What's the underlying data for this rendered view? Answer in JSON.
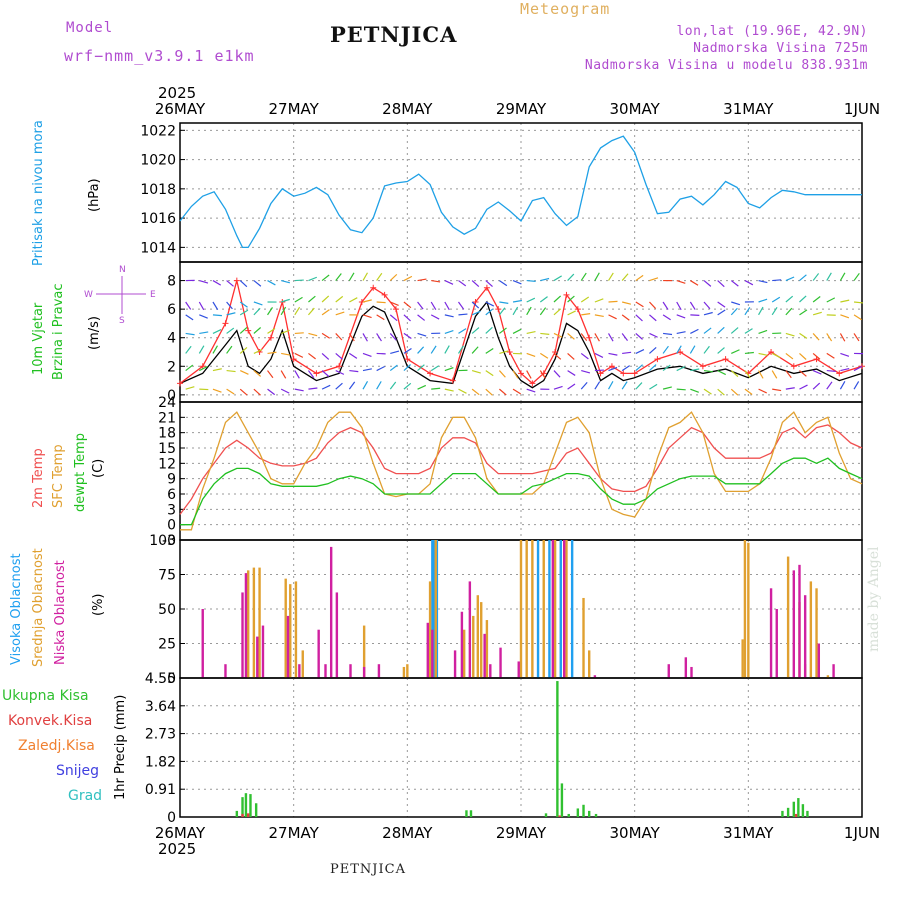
{
  "header": {
    "model_label": "Model",
    "model_name": "wrf−nmm_v3.9.1 e1km",
    "station": "PETNJICA",
    "meteogram": "Meteogram",
    "lonlat": "lon,lat (19.96E, 42.9N)",
    "elevation": "Nadmorska Visina 725m",
    "model_elevation": "Nadmorska Visina u modelu 838.931m"
  },
  "footer": {
    "station": "PETNJICA",
    "credit": "made by Angel"
  },
  "time_axis": {
    "year": "2025",
    "ticks": [
      "26MAY",
      "27MAY",
      "28MAY",
      "29MAY",
      "30MAY",
      "31MAY",
      "1JUN"
    ]
  },
  "panels": {
    "pressure": {
      "label": "Pritisak na nivou mora",
      "unit": "(hPa)",
      "color": "#1ea0e6"
    },
    "wind": {
      "label1": "10m Vjetar",
      "label2": "Brzina i Pravac",
      "unit": "(m/s)",
      "compass": [
        "N",
        "W",
        "E",
        "S"
      ]
    },
    "temp": {
      "label1": "2m Temp",
      "label2": "SFC Temp",
      "label3": "dewpt Temp",
      "unit": "(C)"
    },
    "cloud": {
      "label1": "Visoka Oblacnost",
      "label2": "Srednja Oblacnost",
      "label3": "Niska Oblacnost",
      "unit": "(%)"
    },
    "precip": {
      "unit_label": "1hr Precip (mm)",
      "legend": [
        "Ukupna Kisa",
        "Konvek.Kisa",
        "Zaledj.Kisa",
        "Snijeg",
        "Grad"
      ]
    }
  },
  "chart_data": [
    {
      "type": "line",
      "title": "",
      "ylabel": "(hPa)",
      "ylim": [
        1013,
        1022.5
      ],
      "yticks": [
        1014,
        1016,
        1018,
        1020,
        1022
      ],
      "x_days": [
        0,
        0.1,
        0.2,
        0.3,
        0.4,
        0.5,
        0.55,
        0.6,
        0.7,
        0.8,
        0.9,
        1.0,
        1.1,
        1.2,
        1.3,
        1.4,
        1.5,
        1.6,
        1.7,
        1.8,
        1.9,
        2.0,
        2.1,
        2.2,
        2.3,
        2.4,
        2.5,
        2.6,
        2.7,
        2.8,
        2.9,
        3.0,
        3.1,
        3.2,
        3.3,
        3.4,
        3.5,
        3.6,
        3.7,
        3.8,
        3.9,
        4.0,
        4.1,
        4.2,
        4.3,
        4.4,
        4.5,
        4.6,
        4.7,
        4.8,
        4.9,
        5.0,
        5.1,
        5.2,
        5.3,
        5.4,
        5.5,
        5.6,
        5.7,
        5.8,
        5.9,
        6.0
      ],
      "series": [
        {
          "name": "",
          "color": "#1ea0e6",
          "values": [
            1015.8,
            1016.8,
            1017.5,
            1017.8,
            1016.6,
            1014.8,
            1014.0,
            1014.0,
            1015.3,
            1017.0,
            1018.0,
            1017.5,
            1017.7,
            1018.1,
            1017.6,
            1016.2,
            1015.2,
            1015.0,
            1016.0,
            1018.2,
            1018.4,
            1018.5,
            1019.0,
            1018.3,
            1016.4,
            1015.4,
            1014.9,
            1015.3,
            1016.6,
            1017.1,
            1016.5,
            1015.8,
            1017.2,
            1017.4,
            1016.3,
            1015.5,
            1016.1,
            1019.5,
            1020.8,
            1021.3,
            1021.6,
            1020.5,
            1018.3,
            1016.3,
            1016.4,
            1017.3,
            1017.5,
            1016.9,
            1017.6,
            1018.5,
            1018.1,
            1017.0,
            1016.7,
            1017.4,
            1017.9,
            1017.8,
            1017.6,
            1017.6,
            1017.6,
            1017.6,
            1017.6,
            1017.6
          ]
        }
      ]
    },
    {
      "type": "line",
      "title": "",
      "ylabel": "(m/s)",
      "ylim": [
        -0.5,
        9.3
      ],
      "yticks": [
        0,
        2,
        4,
        6,
        8
      ],
      "x_days": [
        0,
        0.2,
        0.4,
        0.5,
        0.6,
        0.7,
        0.8,
        0.9,
        1.0,
        1.2,
        1.4,
        1.6,
        1.7,
        1.8,
        1.9,
        2.0,
        2.2,
        2.4,
        2.6,
        2.7,
        2.8,
        2.9,
        3.0,
        3.1,
        3.2,
        3.3,
        3.4,
        3.5,
        3.6,
        3.7,
        3.8,
        3.9,
        4.0,
        4.2,
        4.4,
        4.6,
        4.8,
        5.0,
        5.2,
        5.4,
        5.6,
        5.8,
        6.0
      ],
      "series": [
        {
          "name": "",
          "color": "#000000",
          "values": [
            0.8,
            1.5,
            3.5,
            4.5,
            2.0,
            1.5,
            2.5,
            4.5,
            2.0,
            1.0,
            1.5,
            5.5,
            6.2,
            5.8,
            4.0,
            2.0,
            1.0,
            0.8,
            5.5,
            6.5,
            4.0,
            2.0,
            1.0,
            0.5,
            1.0,
            2.5,
            5.0,
            4.5,
            3.0,
            1.0,
            1.5,
            1.0,
            1.2,
            1.8,
            2.0,
            1.5,
            1.8,
            1.2,
            2.0,
            1.5,
            1.8,
            1.0,
            1.5
          ]
        },
        {
          "name": "",
          "color": "#ff3030",
          "values": [
            0.8,
            2.0,
            5.0,
            8.0,
            4.5,
            3.0,
            4.0,
            6.5,
            2.5,
            1.5,
            2.0,
            6.5,
            7.5,
            7.0,
            6.0,
            2.5,
            1.5,
            1.0,
            6.5,
            7.5,
            6.0,
            3.0,
            1.5,
            0.8,
            1.5,
            3.0,
            7.0,
            6.0,
            4.0,
            1.5,
            2.0,
            1.5,
            1.5,
            2.5,
            3.0,
            2.0,
            2.5,
            1.5,
            3.0,
            2.0,
            2.5,
            1.5,
            2.0
          ]
        }
      ]
    },
    {
      "type": "line",
      "title": "",
      "ylabel": "(C)",
      "ylim": [
        -3,
        24
      ],
      "yticks": [
        -3,
        0,
        3,
        6,
        9,
        12,
        15,
        18,
        21,
        24
      ],
      "x_days": [
        0,
        0.1,
        0.2,
        0.3,
        0.4,
        0.5,
        0.6,
        0.7,
        0.8,
        0.9,
        1.0,
        1.1,
        1.2,
        1.3,
        1.4,
        1.5,
        1.6,
        1.7,
        1.8,
        1.9,
        2.0,
        2.1,
        2.2,
        2.3,
        2.4,
        2.5,
        2.6,
        2.7,
        2.8,
        2.9,
        3.0,
        3.1,
        3.2,
        3.3,
        3.4,
        3.5,
        3.6,
        3.7,
        3.8,
        3.9,
        4.0,
        4.1,
        4.2,
        4.3,
        4.4,
        4.5,
        4.6,
        4.7,
        4.8,
        4.9,
        5.0,
        5.1,
        5.2,
        5.3,
        5.4,
        5.5,
        5.6,
        5.7,
        5.8,
        5.9,
        6.0
      ],
      "series": [
        {
          "name": "2m Temp",
          "color": "#f05050",
          "values": [
            2,
            5,
            9,
            12,
            15,
            16.5,
            15,
            13,
            12,
            11.5,
            11.5,
            12,
            13,
            16,
            18,
            19,
            18,
            15,
            11,
            10,
            10,
            10,
            11,
            15,
            17,
            17,
            16,
            12,
            10,
            10,
            10,
            10,
            10.5,
            11,
            14,
            15,
            12,
            9,
            7,
            6.5,
            6.5,
            7.5,
            11,
            15,
            17,
            19,
            18,
            15,
            13,
            13,
            13,
            13,
            14,
            18,
            19,
            17,
            19,
            19.5,
            18,
            16,
            15
          ]
        },
        {
          "name": "SFC Temp",
          "color": "#e0a030",
          "values": [
            -1,
            -1,
            7,
            13,
            20,
            22,
            18,
            14,
            9,
            8,
            8,
            12,
            15,
            20,
            22,
            22,
            19,
            12,
            6,
            5.5,
            6,
            6,
            8,
            17,
            21,
            21,
            17,
            9,
            6,
            6,
            6,
            6,
            8,
            14,
            20,
            21,
            18,
            9,
            3,
            2,
            1.5,
            5,
            13,
            19,
            20,
            22,
            18,
            10,
            6.5,
            6.5,
            6.5,
            8,
            13,
            20,
            22,
            18,
            20,
            21,
            14,
            9,
            8
          ]
        },
        {
          "name": "dewpt Temp",
          "color": "#20c020",
          "values": [
            0,
            0,
            5,
            8,
            10,
            11,
            11,
            10,
            8,
            7.5,
            7.5,
            7.5,
            7.5,
            8,
            9,
            9.5,
            9,
            8,
            6,
            6,
            6,
            6,
            6,
            8,
            10,
            10,
            10,
            8,
            6,
            6,
            6,
            7.5,
            8,
            9,
            10,
            10,
            9.5,
            7,
            5,
            4,
            4,
            5,
            7,
            8,
            9,
            9.5,
            9.5,
            9.5,
            8,
            8,
            8,
            8,
            10,
            12,
            13,
            13,
            12,
            13,
            11,
            10,
            9
          ]
        }
      ]
    },
    {
      "type": "bar",
      "title": "",
      "ylabel": "(%)",
      "ylim": [
        0,
        100
      ],
      "yticks": [
        0,
        25,
        50,
        75,
        100
      ],
      "series": [
        {
          "name": "Visoka Oblacnost",
          "color": "#20a0f0",
          "points": [
            [
              2.22,
              100
            ],
            [
              2.24,
              100
            ],
            [
              2.26,
              100
            ],
            [
              3.15,
              100
            ],
            [
              3.25,
              100
            ],
            [
              3.35,
              100
            ],
            [
              3.45,
              100
            ]
          ]
        },
        {
          "name": "Srednja Oblacnost",
          "color": "#e0a030",
          "points": [
            [
              0.6,
              78
            ],
            [
              0.65,
              80
            ],
            [
              0.7,
              80
            ],
            [
              0.93,
              72
            ],
            [
              0.97,
              68
            ],
            [
              1.02,
              70
            ],
            [
              1.08,
              20
            ],
            [
              1.62,
              38
            ],
            [
              1.97,
              8
            ],
            [
              2.0,
              10
            ],
            [
              2.2,
              70
            ],
            [
              2.25,
              100
            ],
            [
              2.5,
              35
            ],
            [
              2.58,
              45
            ],
            [
              2.62,
              60
            ],
            [
              2.65,
              55
            ],
            [
              2.7,
              42
            ],
            [
              3.0,
              100
            ],
            [
              3.05,
              100
            ],
            [
              3.1,
              100
            ],
            [
              3.2,
              100
            ],
            [
              3.3,
              100
            ],
            [
              3.4,
              100
            ],
            [
              3.55,
              58
            ],
            [
              3.6,
              20
            ],
            [
              4.95,
              28
            ],
            [
              4.97,
              100
            ],
            [
              5.0,
              98
            ],
            [
              5.35,
              88
            ],
            [
              5.45,
              55
            ],
            [
              5.5,
              10
            ],
            [
              5.55,
              70
            ],
            [
              5.6,
              65
            ],
            [
              5.7,
              2
            ]
          ]
        },
        {
          "name": "Niska Oblacnost",
          "color": "#d020a0",
          "points": [
            [
              0.2,
              50
            ],
            [
              0.4,
              10
            ],
            [
              0.55,
              62
            ],
            [
              0.58,
              76
            ],
            [
              0.68,
              30
            ],
            [
              0.73,
              38
            ],
            [
              0.95,
              45
            ],
            [
              1.05,
              10
            ],
            [
              1.22,
              35
            ],
            [
              1.28,
              10
            ],
            [
              1.33,
              95
            ],
            [
              1.38,
              62
            ],
            [
              1.5,
              10
            ],
            [
              1.62,
              8
            ],
            [
              1.75,
              10
            ],
            [
              2.18,
              40
            ],
            [
              2.22,
              35
            ],
            [
              2.42,
              20
            ],
            [
              2.48,
              48
            ],
            [
              2.55,
              70
            ],
            [
              2.68,
              32
            ],
            [
              2.73,
              10
            ],
            [
              2.82,
              22
            ],
            [
              2.98,
              12
            ],
            [
              3.28,
              100
            ],
            [
              3.38,
              100
            ],
            [
              3.65,
              2
            ],
            [
              4.3,
              10
            ],
            [
              4.45,
              15
            ],
            [
              4.5,
              8
            ],
            [
              5.2,
              65
            ],
            [
              5.25,
              50
            ],
            [
              5.4,
              78
            ],
            [
              5.45,
              82
            ],
            [
              5.5,
              60
            ],
            [
              5.62,
              25
            ],
            [
              5.75,
              10
            ]
          ]
        }
      ]
    },
    {
      "type": "bar",
      "title": "",
      "ylabel": "1hr Precip (mm)",
      "ylim": [
        0,
        4.55
      ],
      "yticks": [
        0,
        0.91,
        1.82,
        2.73,
        3.64,
        4.55
      ],
      "series": [
        {
          "name": "Ukupna Kisa",
          "color": "#30c030",
          "points": [
            [
              0.5,
              0.2
            ],
            [
              0.55,
              0.65
            ],
            [
              0.58,
              0.78
            ],
            [
              0.62,
              0.75
            ],
            [
              0.67,
              0.45
            ],
            [
              2.52,
              0.22
            ],
            [
              2.56,
              0.22
            ],
            [
              3.22,
              0.12
            ],
            [
              3.32,
              4.45
            ],
            [
              3.36,
              1.1
            ],
            [
              3.42,
              0.1
            ],
            [
              3.5,
              0.28
            ],
            [
              3.55,
              0.4
            ],
            [
              3.6,
              0.2
            ],
            [
              3.66,
              0.1
            ],
            [
              5.3,
              0.2
            ],
            [
              5.35,
              0.3
            ],
            [
              5.4,
              0.5
            ],
            [
              5.44,
              0.62
            ],
            [
              5.48,
              0.42
            ],
            [
              5.52,
              0.2
            ]
          ]
        },
        {
          "name": "Konvek.Kisa",
          "color": "#e04040",
          "points": [
            [
              0.55,
              0.1
            ],
            [
              0.6,
              0.12
            ],
            [
              3.34,
              0.05
            ],
            [
              5.42,
              0.1
            ]
          ]
        }
      ]
    }
  ]
}
